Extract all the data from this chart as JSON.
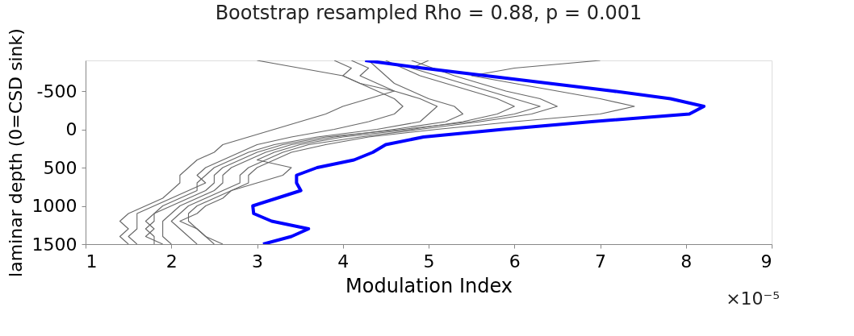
{
  "chart_data": {
    "type": "line",
    "title": "Bootstrap resampled Rho = 0.88, p = 0.001",
    "xlabel": "Modulation Index",
    "ylabel": "laminar depth (0=CSD sink)",
    "orientation": "horizontal",
    "x": [
      -900,
      -800,
      -700,
      -600,
      -500,
      -400,
      -300,
      -200,
      -100,
      0,
      100,
      200,
      300,
      400,
      500,
      600,
      700,
      800,
      900,
      1000,
      1100,
      1200,
      1300,
      1400,
      1500
    ],
    "series": [
      {
        "color": "#666666",
        "values": [
          4.3,
          4.4,
          4.5,
          4.6,
          4.8,
          5.0,
          5.3,
          5.4,
          5.2,
          4.6,
          3.9,
          3.4,
          3.1,
          2.9,
          2.7,
          2.6,
          2.6,
          2.5,
          2.3,
          2.1,
          2.0,
          1.9,
          1.9,
          1.9,
          2.0
        ]
      },
      {
        "color": "#666666",
        "values": [
          4.8,
          null,
          5.3,
          5.6,
          5.9,
          6.3,
          6.5,
          6.2,
          5.6,
          4.9,
          4.2,
          3.6,
          3.3,
          3.1,
          2.9,
          2.8,
          2.8,
          2.6,
          2.4,
          2.2,
          2.1,
          2.0,
          2.1,
          2.2,
          2.3
        ]
      },
      {
        "color": "#666666",
        "values": [
          7.0,
          6.0,
          5.5,
          6.0,
          6.5,
          7.0,
          7.4,
          7.0,
          6.0,
          5.1,
          4.3,
          3.8,
          3.4,
          3.2,
          3.0,
          2.9,
          2.9,
          2.7,
          2.5,
          2.3,
          2.2,
          2.2,
          2.3,
          2.4,
          2.5
        ]
      },
      {
        "color": "#666666",
        "values": [
          3.9,
          4.1,
          4.0,
          4.2,
          4.4,
          4.6,
          4.7,
          4.6,
          4.3,
          3.9,
          3.4,
          3.0,
          2.8,
          2.6,
          2.4,
          2.3,
          2.4,
          2.2,
          2.0,
          1.8,
          1.6,
          1.6,
          1.6,
          1.5,
          1.6
        ]
      },
      {
        "color": "#666666",
        "values": [
          3.0,
          3.5,
          4.0,
          4.2,
          4.6,
          4.3,
          4.0,
          3.8,
          3.5,
          3.2,
          2.9,
          2.6,
          2.5,
          2.3,
          2.2,
          2.1,
          2.1,
          2.0,
          1.9,
          1.7,
          1.5,
          1.4,
          1.5,
          1.4,
          1.5
        ]
      },
      {
        "color": "#666666",
        "values": [
          4.5,
          4.7,
          4.9,
          5.2,
          5.5,
          5.8,
          6.0,
          5.8,
          5.4,
          4.8,
          4.0,
          3.5,
          3.2,
          3.0,
          3.4,
          3.3,
          3.0,
          2.7,
          2.6,
          2.4,
          2.3,
          2.1,
          2.3,
          2.4,
          2.6
        ]
      },
      {
        "color": "#666666",
        "values": [
          5.0,
          4.8,
          5.1,
          5.4,
          5.7,
          6.0,
          6.3,
          6.0,
          5.5,
          4.7,
          3.8,
          3.3,
          3.0,
          2.8,
          2.6,
          2.5,
          2.5,
          2.4,
          2.2,
          2.0,
          1.8,
          1.8,
          1.7,
          1.8,
          1.8
        ]
      },
      {
        "color": "#666666",
        "values": [
          4.1,
          4.3,
          4.2,
          4.4,
          4.6,
          4.9,
          5.1,
          5.0,
          4.9,
          4.4,
          3.7,
          3.2,
          2.9,
          2.7,
          2.5,
          2.4,
          2.3,
          2.3,
          2.1,
          1.9,
          1.8,
          1.7,
          1.8,
          1.7,
          1.9
        ]
      },
      {
        "color": "#0000ff",
        "values": [
          4.26,
          4.93,
          5.67,
          6.41,
          7.15,
          7.82,
          8.21,
          8.04,
          6.9,
          5.87,
          4.94,
          4.5,
          4.35,
          4.13,
          3.7,
          3.46,
          3.46,
          3.51,
          3.23,
          2.95,
          2.96,
          3.17,
          3.6,
          3.4,
          3.07
        ]
      }
    ],
    "xlim": [
      1,
      9
    ],
    "xticks": [
      1,
      2,
      3,
      4,
      5,
      6,
      7,
      8,
      9
    ],
    "ylim": [
      1500,
      -900
    ],
    "yticks": [
      -500,
      0,
      500,
      1000,
      1500
    ],
    "annotations": [
      "×10⁻⁵"
    ],
    "grid": false,
    "marker": "none",
    "line_style": "solid"
  }
}
